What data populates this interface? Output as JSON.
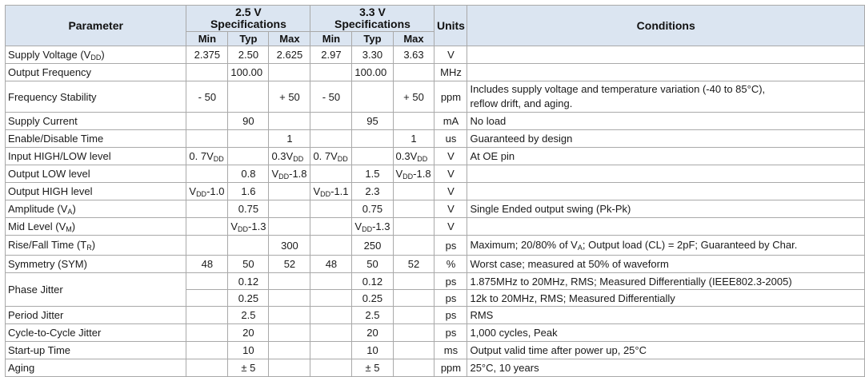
{
  "header": {
    "parameter": "Parameter",
    "group_25": "2.5 V",
    "group_33": "3.3 V",
    "specifications": "Specifications",
    "units": "Units",
    "conditions": "Conditions",
    "min": "Min",
    "typ": "Typ",
    "max": "Max"
  },
  "rows": {
    "supply_voltage": {
      "name": "Supply Voltage (V",
      "sub": "DD",
      "close": ")",
      "min25": "2.375",
      "typ25": "2.50",
      "max25": "2.625",
      "min33": "2.97",
      "typ33": "3.30",
      "max33": "3.63",
      "unit": "V",
      "cond": ""
    },
    "output_frequency": {
      "name": "Output Frequency",
      "typ25": "100.00",
      "typ33": "100.00",
      "unit": "MHz",
      "cond": ""
    },
    "frequency_stability": {
      "name": "Frequency Stability",
      "min25": "- 50",
      "max25": "+ 50",
      "min33": "- 50",
      "max33": "+ 50",
      "unit": "ppm",
      "cond_line1": "Includes supply voltage and temperature variation (-40 to 85°C),",
      "cond_line2": "reflow drift, and aging."
    },
    "supply_current": {
      "name": "Supply Current",
      "typ25": "90",
      "typ33": "95",
      "unit": "mA",
      "cond": "No load"
    },
    "enable_disable": {
      "name": "Enable/Disable Time",
      "max25": "1",
      "max33": "1",
      "unit": "us",
      "cond": "Guaranteed by design"
    },
    "input_level": {
      "name": "Input HIGH/LOW level",
      "min25": "0. 7V",
      "min25_sub": "DD",
      "max25": "0.3V",
      "max25_sub": "DD",
      "min33": "0. 7V",
      "min33_sub": "DD",
      "max33": "0.3V",
      "max33_sub": "DD",
      "unit": "V",
      "cond": "At OE pin"
    },
    "output_low": {
      "name": "Output LOW level",
      "typ25": "0.8",
      "max25_pre": "V",
      "max25_sub": "DD",
      "max25_post": "-1.8",
      "typ33": "1.5",
      "max33_pre": "V",
      "max33_sub": "DD",
      "max33_post": "-1.8",
      "unit": "V",
      "cond": ""
    },
    "output_high": {
      "name": "Output HIGH level",
      "min25_pre": "V",
      "min25_sub": "DD",
      "min25_post": "-1.0",
      "typ25": "1.6",
      "min33_pre": "V",
      "min33_sub": "DD",
      "min33_post": "-1.1",
      "typ33": "2.3",
      "unit": "V",
      "cond": ""
    },
    "amplitude": {
      "name": "Amplitude (V",
      "sub": "A",
      "close": ")",
      "typ25": "0.75",
      "typ33": "0.75",
      "unit": "V",
      "cond": "Single Ended output swing (Pk-Pk)"
    },
    "mid_level": {
      "name": "Mid Level (V",
      "sub": "M",
      "close": ")",
      "typ25_pre": "V",
      "typ25_sub": "DD",
      "typ25_post": "-1.3",
      "typ33_pre": "V",
      "typ33_sub": "DD",
      "typ33_post": "-1.3",
      "unit": "V",
      "cond": ""
    },
    "rise_fall": {
      "name": "Rise/Fall Time (T",
      "sub": "R",
      "close": ")",
      "max25": "300",
      "typ33": "250",
      "unit": "ps",
      "cond_pre": "Maximum; 20/80% of V",
      "cond_sub": "A",
      "cond_post": "; Output load (CL) = 2pF; Guaranteed by Char."
    },
    "symmetry": {
      "name": "Symmetry (SYM)",
      "min25": "48",
      "typ25": "50",
      "max25": "52",
      "min33": "48",
      "typ33": "50",
      "max33": "52",
      "unit": "%",
      "cond": "Worst case; measured at 50% of waveform"
    },
    "phase_jitter": {
      "name": "Phase Jitter",
      "typ25_a": "0.12",
      "typ33_a": "0.12",
      "unit_a": "ps",
      "cond_a": "1.875MHz to 20MHz, RMS; Measured Differentially (IEEE802.3-2005)",
      "typ25_b": "0.25",
      "typ33_b": "0.25",
      "unit_b": "ps",
      "cond_b": "12k to 20MHz, RMS; Measured Differentially"
    },
    "period_jitter": {
      "name": "Period Jitter",
      "typ25": "2.5",
      "typ33": "2.5",
      "unit": "ps",
      "cond": "RMS"
    },
    "c2c_jitter": {
      "name": "Cycle-to-Cycle Jitter",
      "typ25": "20",
      "typ33": "20",
      "unit": "ps",
      "cond": "1,000 cycles, Peak"
    },
    "startup": {
      "name": "Start-up Time",
      "typ25": "10",
      "typ33": "10",
      "unit": "ms",
      "cond": "Output valid time after power up, 25°C"
    },
    "aging": {
      "name": "Aging",
      "typ25": "± 5",
      "typ33": "± 5",
      "unit": "ppm",
      "cond": "25°C, 10 years"
    }
  }
}
